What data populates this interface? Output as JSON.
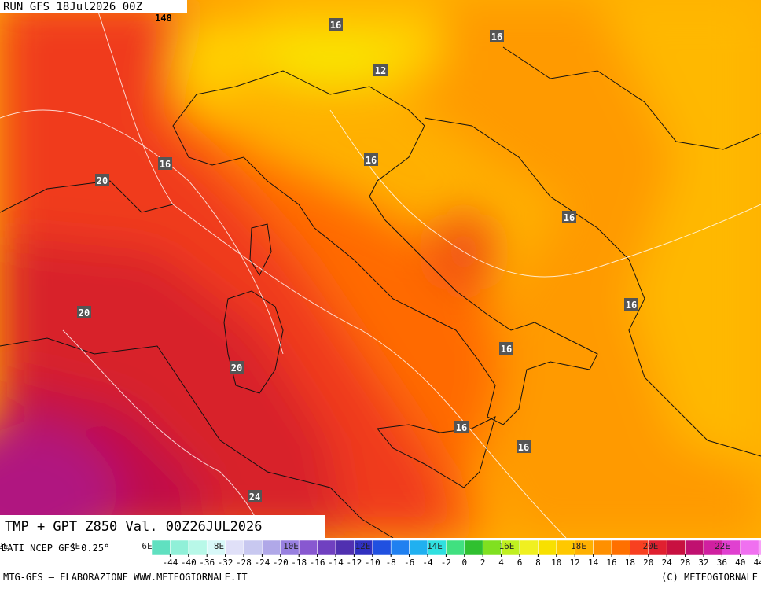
{
  "header": {
    "run": "RUN GFS 18Jul2026 00Z",
    "cut_label": "148"
  },
  "contour_labels": [
    "16",
    "16",
    "12",
    "16",
    "16",
    "20",
    "16",
    "16",
    "20",
    "16",
    "20",
    "16",
    "16",
    "24"
  ],
  "legend": {
    "title": "TMP + GPT Z850 Val. 00Z26JUL2026",
    "source": "DATI NCEP GFS 0.25°",
    "longitudes": [
      "2E",
      "4E",
      "6E",
      "8E",
      "10E",
      "12E",
      "14E",
      "16E",
      "18E",
      "20E",
      "22E"
    ],
    "scale": [
      -44,
      -40,
      -36,
      -32,
      -28,
      -24,
      -20,
      -18,
      -16,
      -14,
      -12,
      -10,
      -8,
      -6,
      -4,
      -2,
      0,
      2,
      4,
      6,
      8,
      10,
      12,
      14,
      16,
      18,
      20,
      24,
      28,
      32,
      36,
      40,
      44
    ],
    "colors": [
      "#60e0c0",
      "#90f0d8",
      "#b8f8e8",
      "#d8f8f8",
      "#e0e0f8",
      "#c8c8f0",
      "#b0a8e8",
      "#9880e0",
      "#8858d0",
      "#7040c0",
      "#5030b0",
      "#3030c0",
      "#2050e0",
      "#2080f0",
      "#20b0f0",
      "#30e0e0",
      "#40e080",
      "#30c030",
      "#80e020",
      "#c0f020",
      "#f0f020",
      "#f8e000",
      "#ffc800",
      "#ffb000",
      "#ff9000",
      "#ff7000",
      "#f84020",
      "#e02030",
      "#c81040",
      "#c01070",
      "#d020a0",
      "#e040d0",
      "#f070f0",
      "#f8a0f8"
    ]
  },
  "footer": {
    "left": "MTG-GFS — ELABORAZIONE WWW.METEOGIORNALE.IT",
    "right": "(C) METEOGIORNALE"
  }
}
